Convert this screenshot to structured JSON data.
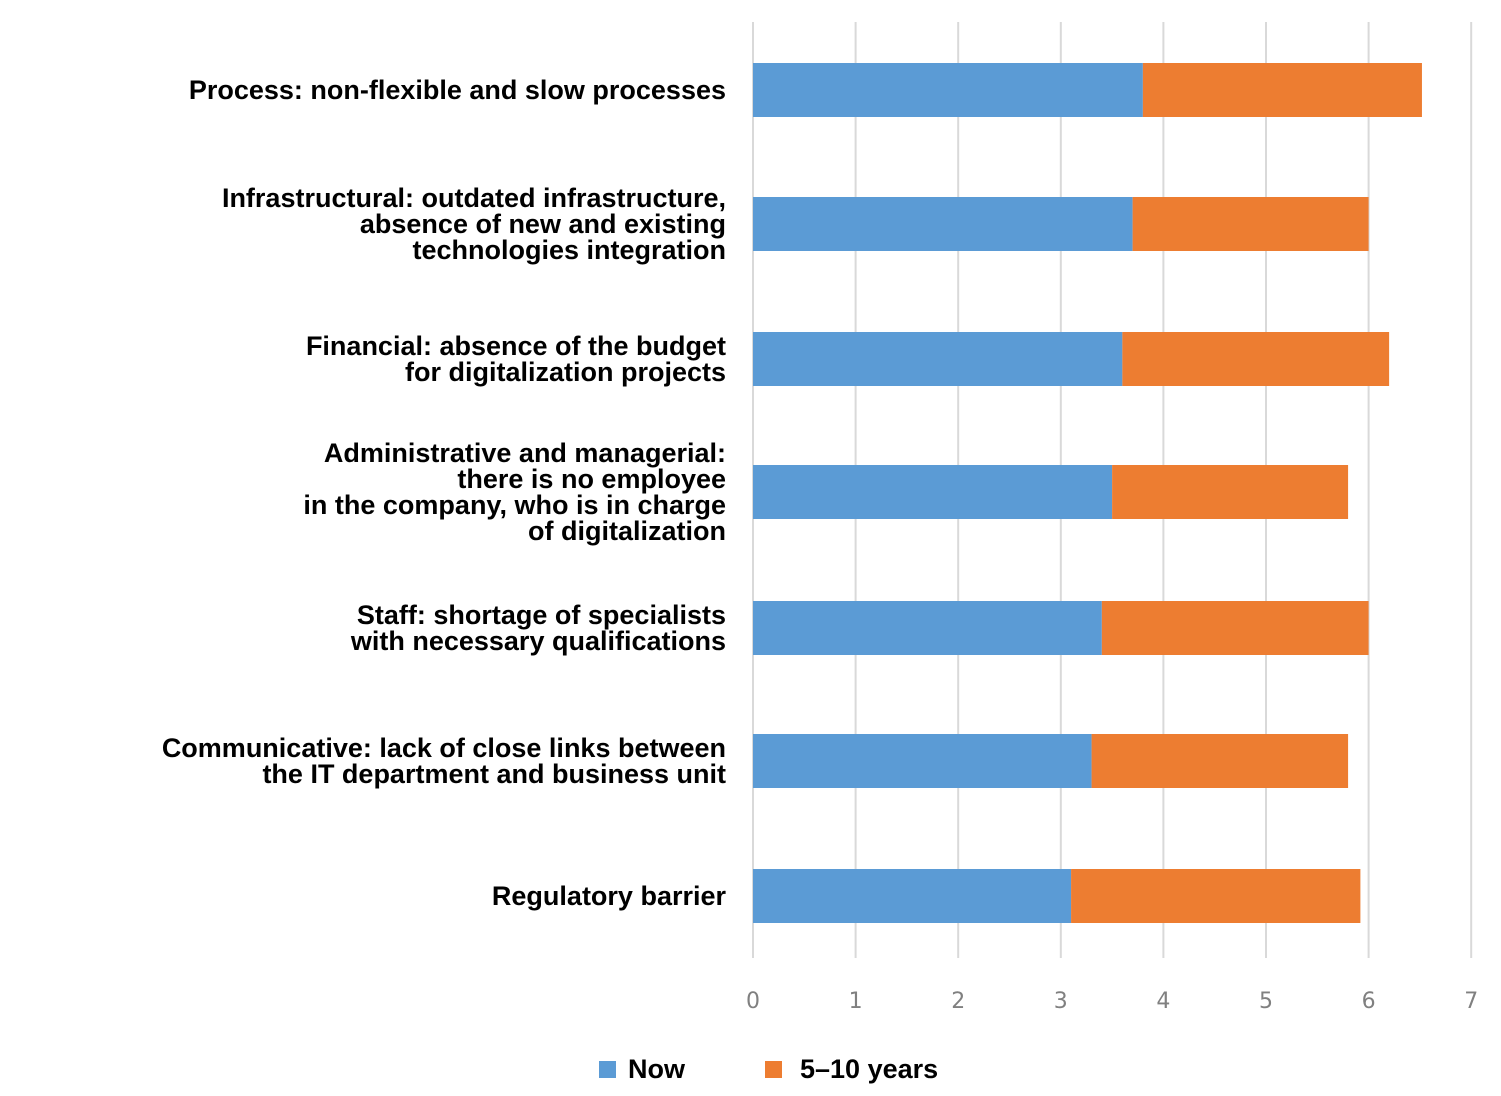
{
  "chart_data": {
    "type": "bar",
    "orientation": "horizontal",
    "stacked": true,
    "categories": [
      [
        "Process: non-flexible and slow processes"
      ],
      [
        "Infrastructural: outdated infrastructure,",
        "absence of new and existing",
        "technologies integration"
      ],
      [
        "Financial: absence of the budget",
        "for digitalization projects"
      ],
      [
        "Administrative and managerial:",
        "there is no employee",
        "in the company, who is in charge",
        "of digitalization"
      ],
      [
        "Staff: shortage of specialists",
        "with necessary qualifications"
      ],
      [
        "Communicative: lack of close links between",
        "the IT department and business unit"
      ],
      [
        "Regulatory barrier"
      ]
    ],
    "series": [
      {
        "name": "Now",
        "color": "#5b9bd5",
        "values": [
          3.8,
          3.7,
          3.6,
          3.5,
          3.4,
          3.3,
          3.1
        ]
      },
      {
        "name": "5–10 years",
        "color": "#ed7d31",
        "values": [
          2.72,
          2.3,
          2.6,
          2.3,
          2.6,
          2.5,
          2.82
        ]
      }
    ],
    "xlim": [
      0,
      7
    ],
    "xticks": [
      "0",
      "1",
      "2",
      "3",
      "4",
      "5",
      "6",
      "7"
    ],
    "grid": true,
    "legend_position": "bottom",
    "title": "",
    "xlabel": "",
    "ylabel": ""
  }
}
